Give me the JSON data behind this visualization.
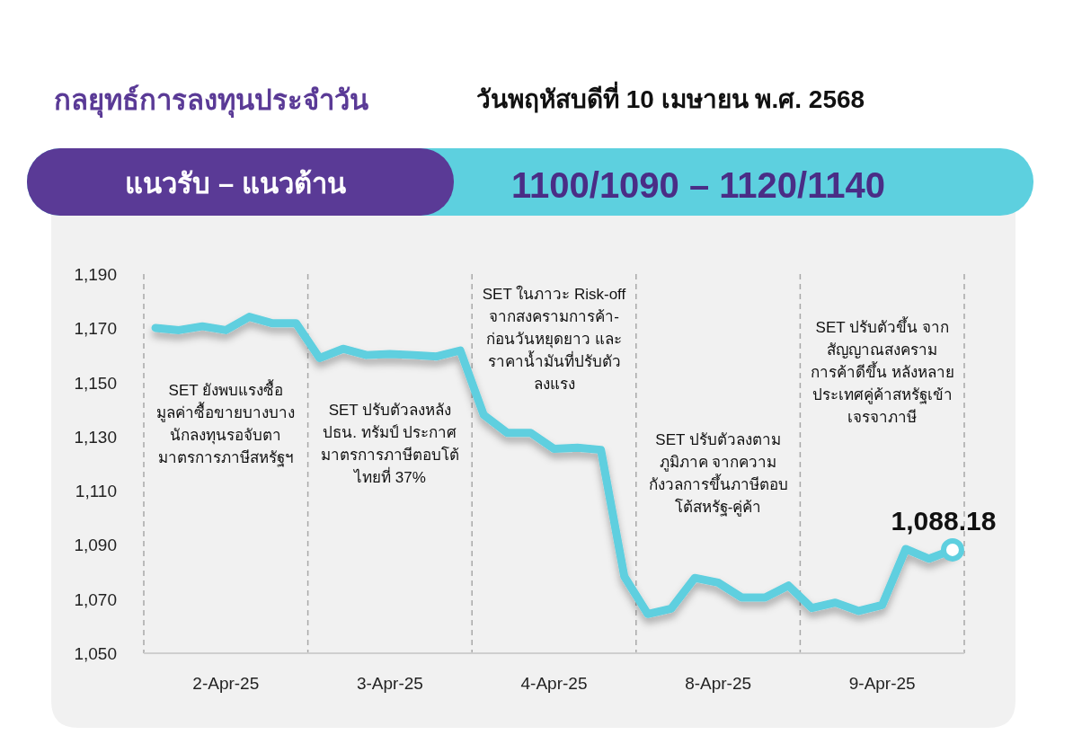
{
  "chart_data": {
    "type": "line",
    "title": "กลยุทธ์การลงทุนประจำวัน",
    "subtitle": "วันพฤหัสบดีที่ 10 เมษายน พ.ศ. 2568",
    "annotations": [
      "แนวรับ – แนวต้าน",
      "1100/1090 – 1120/1140",
      "SET ยังพบแรงซื้อ\nมูลค่าซื้อขายบางบาง\nนักลงทุนรอจับตา\nมาตรการภาษีสหรัฐฯ",
      "SET ปรับตัวลงหลัง\nปธน. ทรัมป์ ประกาศ\nมาตรการภาษีตอบโต้\nไทยที่ 37%",
      "SET ในภาวะ Risk-off\nจากสงครามการค้า-\nก่อนวันหยุดยาว และ\nราคาน้ำมันที่ปรับตัว\nลงแรง",
      "SET ปรับตัวลงตาม\nภูมิภาค จากความ\nกังวลการขึ้นภาษีตอบ\nโต้สหรัฐ-คู่ค้า",
      "SET ปรับตัวขึ้น จาก\nสัญญาณสงคราม\nการค้าดีขึ้น หลังหลาย\nประเทศคู่ค้าสหรัฐเข้า\nเจรจาภาษี"
    ],
    "categories": [
      null,
      null,
      null,
      "2-Apr-25",
      null,
      null,
      null,
      null,
      null,
      null,
      "3-Apr-25",
      null,
      null,
      null,
      null,
      null,
      null,
      "4-Apr-25",
      null,
      null,
      null,
      null,
      null,
      null,
      "8-Apr-25",
      null,
      null,
      null,
      null,
      null,
      null,
      "9-Apr-25",
      null,
      null,
      null
    ],
    "ylim": [
      1050,
      1190
    ],
    "yticks": [
      {
        "value": 1050,
        "label": "1,050"
      },
      {
        "value": 1070,
        "label": "1,070"
      },
      {
        "value": 1090,
        "label": "1,090"
      },
      {
        "value": 1110,
        "label": "1,110"
      },
      {
        "value": 1130,
        "label": "1,130"
      },
      {
        "value": 1150,
        "label": "1,150"
      },
      {
        "value": 1170,
        "label": "1,170"
      },
      {
        "value": 1190,
        "label": "1,190"
      }
    ],
    "series": [
      {
        "color": "#5ecfdf",
        "values": [
          1170.1,
          1169.3,
          1170.7,
          1169.3,
          1174.2,
          1171.8,
          1171.8,
          1159.0,
          1162.4,
          1160.1,
          1160.5,
          1160.1,
          1159.6,
          1161.8,
          1138.0,
          1131.4,
          1131.4,
          1125.5,
          1125.9,
          1125.1,
          1078.3,
          1064.5,
          1066.5,
          1077.8,
          1076.1,
          1070.6,
          1070.6,
          1075.0,
          1066.7,
          1068.7,
          1065.6,
          1067.8,
          1088.5,
          1084.9,
          1088.18
        ]
      },
      {
        "type": "scatter",
        "marker": "circle",
        "color": "#5ecfdf",
        "values": [
          null,
          null,
          null,
          null,
          null,
          null,
          null,
          null,
          null,
          null,
          null,
          null,
          null,
          null,
          null,
          null,
          null,
          null,
          null,
          null,
          null,
          null,
          null,
          null,
          null,
          null,
          null,
          null,
          null,
          null,
          null,
          null,
          null,
          null,
          1088.18
        ],
        "value_labels": [
          null,
          null,
          null,
          null,
          null,
          null,
          null,
          null,
          null,
          null,
          null,
          null,
          null,
          null,
          null,
          null,
          null,
          null,
          null,
          null,
          null,
          null,
          null,
          null,
          null,
          null,
          null,
          null,
          null,
          null,
          null,
          null,
          null,
          null,
          "1,088.18"
        ]
      }
    ],
    "grid": false
  }
}
